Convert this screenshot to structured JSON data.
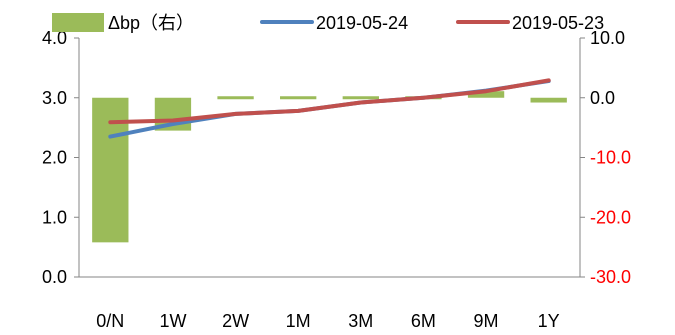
{
  "chart_data": {
    "type": "bar+line",
    "categories": [
      "0/N",
      "1W",
      "2W",
      "1M",
      "3M",
      "6M",
      "9M",
      "1Y"
    ],
    "series": [
      {
        "name": "Δbp（右）",
        "kind": "bar",
        "axis": "right",
        "color": "#9bbb59",
        "values": [
          -24.2,
          -5.5,
          0.0,
          -0.5,
          -0.3,
          -0.3,
          1.1,
          -0.8
        ]
      },
      {
        "name": "2019-05-24",
        "kind": "line",
        "axis": "left",
        "color": "#4f81bd",
        "values": [
          2.35,
          2.56,
          2.73,
          2.78,
          2.92,
          3.0,
          3.12,
          3.28
        ]
      },
      {
        "name": "2019-05-23",
        "kind": "line",
        "axis": "left",
        "color": "#c0504d",
        "values": [
          2.59,
          2.62,
          2.73,
          2.78,
          2.92,
          3.0,
          3.11,
          3.29
        ]
      }
    ],
    "y_left": {
      "ylim": [
        0,
        4
      ],
      "ticks": [
        "0.0",
        "1.0",
        "2.0",
        "3.0",
        "4.0"
      ]
    },
    "y_right": {
      "ylim": [
        -30,
        10
      ],
      "ticks": [
        "-30.0",
        "-20.0",
        "-10.0",
        "0.0",
        "10.0"
      ],
      "negative_tick_color": "#ff0000"
    },
    "legend_position": "top",
    "grid": false
  }
}
